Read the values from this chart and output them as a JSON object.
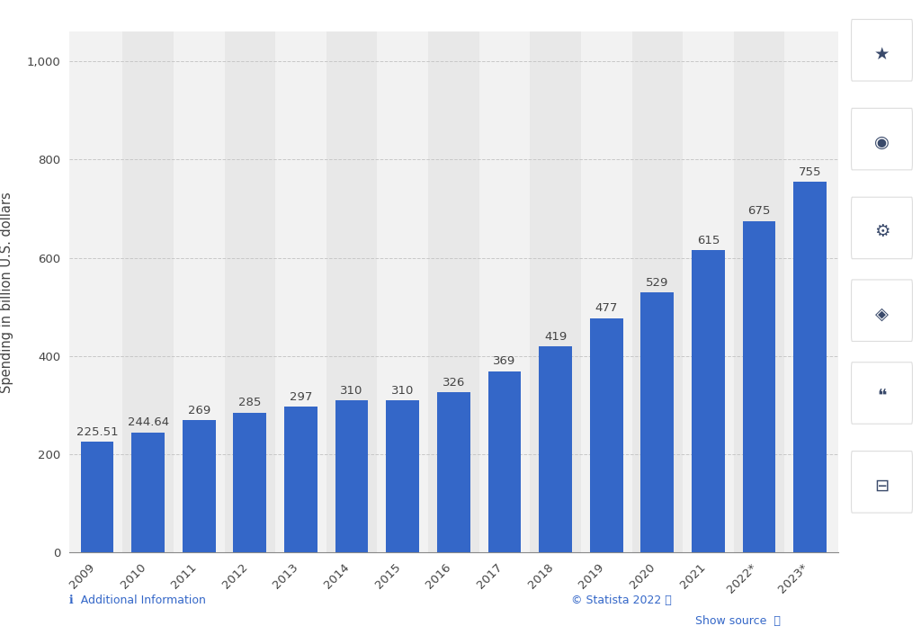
{
  "years": [
    "2009",
    "2010",
    "2011",
    "2012",
    "2013",
    "2014",
    "2015",
    "2016",
    "2017",
    "2018",
    "2019",
    "2020",
    "2021",
    "2022*",
    "2023*"
  ],
  "values": [
    225.51,
    244.64,
    269,
    285,
    297,
    310,
    310,
    326,
    369,
    419,
    477,
    529,
    615,
    675,
    755
  ],
  "labels": [
    "225.51",
    "244.64",
    "269",
    "285",
    "297",
    "310",
    "310",
    "326",
    "369",
    "419",
    "477",
    "529",
    "615",
    "675",
    "755"
  ],
  "bar_color": "#3467C8",
  "background_color": "#ffffff",
  "plot_bg_color": "#f2f2f2",
  "plot_bg_color_alt": "#e8e8e8",
  "ylabel": "Spending in billion U.S. dollars",
  "yticks": [
    0,
    200,
    400,
    600,
    800,
    1000
  ],
  "ylim": [
    0,
    1060
  ],
  "grid_color": "#c8c8c8",
  "bar_label_fontsize": 9.5,
  "ylabel_fontsize": 10.5,
  "xtick_fontsize": 9.5,
  "ytick_fontsize": 9.5,
  "tick_label_color": "#444444",
  "right_panel_color": "#f0f0f5",
  "footer_statista": "© Statista 2022",
  "footer_show_source": "Show source",
  "footer_additional": "ℹ  Additional Information",
  "footer_blue": "#3467C8",
  "footer_gray": "#555555",
  "sidebar_icon_color": "#3a4a6b",
  "sidebar_bg": "#f5f5fa"
}
